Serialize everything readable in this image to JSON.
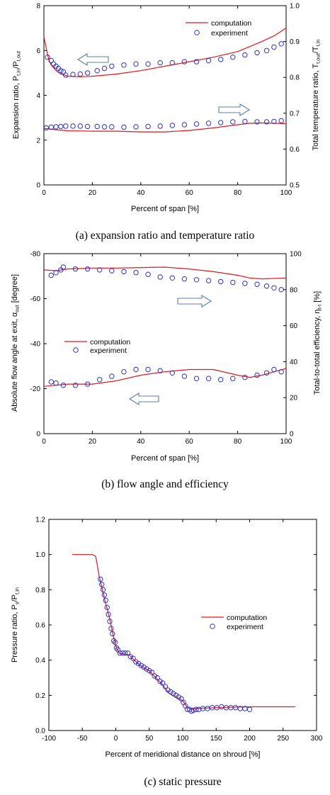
{
  "chart_data": [
    {
      "type": "line",
      "caption": "(a) expansion ratio and temperature ratio",
      "xlabel": "Percent of span [%]",
      "ylabel_left": "Expansion ratio, P",
      "ylabel_left_sub1": "t,in",
      "ylabel_left_mid": "/P",
      "ylabel_left_sub2": "t,out",
      "ylabel_right": "Total temperature ratio, T",
      "ylabel_right_sub1": "t,out",
      "ylabel_right_mid": "/T",
      "ylabel_right_sub2": "t,in",
      "xlim": [
        0,
        100
      ],
      "ylim_left": [
        0,
        8
      ],
      "ylim_right": [
        0.5,
        1.0
      ],
      "xticks": [
        "0",
        "20",
        "40",
        "60",
        "80",
        "100"
      ],
      "yticks_left": [
        "0",
        "2",
        "4",
        "6",
        "8"
      ],
      "yticks_right": [
        "0.5",
        "0.6",
        "0.7",
        "0.8",
        "0.9",
        "1.0"
      ],
      "legend": {
        "position": "top-right",
        "computation": "computation",
        "experiment": "experiment"
      },
      "arrows": [
        {
          "points_to": "left",
          "color": "#5b7fa3"
        },
        {
          "points_to": "right",
          "color": "#5b7fa3"
        }
      ],
      "series": [
        {
          "name": "computation",
          "axis": "left",
          "style": "line",
          "color": "#e0181b",
          "x": [
            0,
            1,
            2,
            3,
            5,
            7,
            10,
            15,
            20,
            30,
            40,
            50,
            60,
            70,
            80,
            90,
            95,
            100
          ],
          "y": [
            6.6,
            6.1,
            5.6,
            5.35,
            5.1,
            4.95,
            4.85,
            4.83,
            4.85,
            4.95,
            5.1,
            5.3,
            5.5,
            5.7,
            5.95,
            6.4,
            6.65,
            7.0
          ]
        },
        {
          "name": "experiment",
          "axis": "left",
          "style": "markers",
          "color": "#3333c4",
          "x": [
            1.5,
            3,
            4,
            5,
            6,
            7,
            8,
            9,
            12,
            15,
            18,
            22,
            25,
            28,
            33,
            38,
            43,
            48,
            53,
            58,
            63,
            68,
            73,
            78,
            83,
            88,
            92,
            95,
            98
          ],
          "y": [
            5.7,
            5.55,
            5.4,
            5.3,
            5.2,
            5.1,
            5.05,
            4.9,
            4.93,
            4.95,
            5.0,
            5.1,
            5.2,
            5.3,
            5.35,
            5.4,
            5.4,
            5.45,
            5.45,
            5.5,
            5.5,
            5.55,
            5.6,
            5.7,
            5.8,
            5.9,
            6.0,
            6.15,
            6.3
          ]
        },
        {
          "name": "computation",
          "axis": "right",
          "style": "line",
          "color": "#e0181b",
          "x": [
            0,
            5,
            10,
            20,
            30,
            40,
            50,
            60,
            70,
            80,
            85,
            90,
            95,
            100
          ],
          "y": [
            0.658,
            0.654,
            0.651,
            0.65,
            0.65,
            0.648,
            0.648,
            0.652,
            0.659,
            0.668,
            0.672,
            0.673,
            0.672,
            0.671
          ]
        },
        {
          "name": "experiment",
          "axis": "right",
          "style": "markers",
          "color": "#3333c4",
          "x": [
            1,
            3,
            5,
            7,
            9,
            12,
            15,
            18,
            22,
            25,
            28,
            33,
            38,
            43,
            48,
            53,
            58,
            63,
            68,
            73,
            78,
            83,
            88,
            92,
            95,
            98
          ],
          "y": [
            0.659,
            0.661,
            0.662,
            0.663,
            0.664,
            0.664,
            0.664,
            0.663,
            0.663,
            0.662,
            0.662,
            0.661,
            0.662,
            0.663,
            0.664,
            0.666,
            0.668,
            0.67,
            0.672,
            0.674,
            0.676,
            0.677,
            0.676,
            0.676,
            0.677,
            0.679
          ]
        }
      ]
    },
    {
      "type": "line",
      "caption": "(b) flow angle and efficiency",
      "xlabel": "Percent of span [%]",
      "ylabel_left": "Absolute flow angle at exit, α",
      "ylabel_left_sub1": "out",
      "ylabel_left_mid": " [degree]",
      "ylabel_right": "Total-to-total efficiency, η",
      "ylabel_right_sub1": "t-t",
      "ylabel_right_mid": " [%]",
      "xlim": [
        0,
        100
      ],
      "ylim_left": [
        0,
        -80
      ],
      "ylim_right": [
        0,
        100
      ],
      "xticks": [
        "0",
        "20",
        "40",
        "60",
        "80",
        "100"
      ],
      "yticks_left": [
        "-80",
        "-60",
        "-40",
        "-20",
        "0"
      ],
      "yticks_right": [
        "0",
        "20",
        "40",
        "60",
        "80",
        "100"
      ],
      "legend": {
        "position": "center-left",
        "computation": "computation",
        "experiment": "experiment"
      },
      "arrows": [
        {
          "points_to": "right",
          "color": "#5b7fa3"
        },
        {
          "points_to": "left",
          "color": "#5b7fa3"
        }
      ],
      "series": [
        {
          "name": "computation",
          "axis": "right",
          "style": "line",
          "color": "#e0181b",
          "x": [
            0,
            5,
            10,
            20,
            30,
            40,
            50,
            60,
            70,
            80,
            85,
            90,
            100
          ],
          "y": [
            91,
            90.5,
            91.5,
            92,
            92,
            92.3,
            92.5,
            91.5,
            90,
            88,
            86.5,
            86,
            86.5
          ]
        },
        {
          "name": "experiment",
          "axis": "right",
          "style": "markers",
          "color": "#3333c4",
          "x": [
            3,
            5,
            7,
            8,
            13,
            18,
            23,
            28,
            33,
            38,
            43,
            48,
            53,
            58,
            63,
            68,
            73,
            78,
            83,
            88,
            92,
            95,
            98
          ],
          "y": [
            88,
            89.5,
            91,
            92.5,
            91.5,
            91.5,
            91,
            90.5,
            90,
            89.5,
            88.5,
            87,
            86.5,
            86,
            85.5,
            85,
            84.5,
            84,
            83.5,
            83,
            82,
            81,
            80
          ]
        },
        {
          "name": "computation",
          "axis": "left",
          "style": "line",
          "color": "#e0181b",
          "x": [
            0,
            5,
            10,
            20,
            30,
            40,
            50,
            60,
            70,
            80,
            85,
            90,
            100
          ],
          "y": [
            -21,
            -21.5,
            -22,
            -22,
            -23.5,
            -26,
            -27.5,
            -28.5,
            -28.5,
            -26,
            -25,
            -26,
            -29
          ]
        },
        {
          "name": "experiment",
          "axis": "left",
          "style": "markers",
          "color": "#3333c4",
          "x": [
            3,
            5,
            8,
            13,
            18,
            23,
            28,
            33,
            38,
            43,
            48,
            53,
            58,
            63,
            68,
            73,
            78,
            83,
            88,
            92,
            95,
            98
          ],
          "y": [
            -23,
            -22.5,
            -21.5,
            -21.5,
            -22,
            -24,
            -25.5,
            -27.5,
            -28.5,
            -28.5,
            -28,
            -27,
            -25.5,
            -24.5,
            -24.5,
            -24,
            -24.5,
            -25,
            -26,
            -27,
            -28.5,
            -27.5
          ]
        }
      ]
    },
    {
      "type": "line",
      "caption": "(c) static pressure",
      "xlabel": "Percent of meridional distance on shroud [%]",
      "ylabel_left": "Pressure ratio, P",
      "ylabel_left_sub1": "s",
      "ylabel_left_mid": "/P",
      "ylabel_left_sub2": "t,in",
      "xlim": [
        -100,
        300
      ],
      "ylim_left": [
        0,
        1.2
      ],
      "xticks": [
        "-100",
        "-50",
        "0",
        "50",
        "100",
        "150",
        "200",
        "250",
        "300"
      ],
      "yticks_left": [
        "0.0",
        "0.2",
        "0.4",
        "0.6",
        "0.8",
        "1.0",
        "1.2"
      ],
      "legend": {
        "position": "right",
        "computation": "computation",
        "experiment": "experiment"
      },
      "series": [
        {
          "name": "computation",
          "axis": "left",
          "style": "line",
          "color": "#e0181b",
          "x": [
            -65,
            -35,
            -30,
            -28,
            -25,
            -20,
            -15,
            -10,
            -5,
            0,
            5,
            10,
            20,
            30,
            40,
            50,
            60,
            70,
            80,
            90,
            100,
            105,
            110,
            120,
            150,
            200,
            268
          ],
          "y": [
            1.0,
            1.0,
            0.99,
            0.95,
            0.88,
            0.8,
            0.72,
            0.65,
            0.56,
            0.48,
            0.44,
            0.435,
            0.43,
            0.39,
            0.36,
            0.34,
            0.3,
            0.26,
            0.21,
            0.19,
            0.17,
            0.14,
            0.125,
            0.125,
            0.13,
            0.135,
            0.135
          ]
        },
        {
          "name": "experiment",
          "axis": "left",
          "style": "markers",
          "color": "#3333c4",
          "x": [
            -23,
            -21,
            -19,
            -17,
            -15,
            -13,
            -11,
            -9,
            -7,
            -5,
            -3,
            -1,
            1,
            3,
            6,
            10,
            14,
            18,
            22,
            26,
            30,
            34,
            38,
            42,
            46,
            50,
            54,
            58,
            62,
            66,
            70,
            74,
            78,
            82,
            86,
            90,
            94,
            98,
            101,
            104,
            107,
            110,
            113,
            116,
            120,
            124,
            130,
            137,
            144,
            151,
            158,
            165,
            172,
            179,
            186,
            193,
            200
          ],
          "y": [
            0.86,
            0.83,
            0.8,
            0.77,
            0.74,
            0.7,
            0.66,
            0.62,
            0.58,
            0.55,
            0.51,
            0.5,
            0.47,
            0.46,
            0.44,
            0.44,
            0.44,
            0.44,
            0.42,
            0.41,
            0.39,
            0.38,
            0.37,
            0.36,
            0.35,
            0.34,
            0.33,
            0.31,
            0.3,
            0.28,
            0.27,
            0.25,
            0.23,
            0.22,
            0.21,
            0.2,
            0.19,
            0.18,
            0.16,
            0.14,
            0.12,
            0.12,
            0.11,
            0.115,
            0.12,
            0.12,
            0.125,
            0.125,
            0.13,
            0.13,
            0.135,
            0.13,
            0.13,
            0.13,
            0.125,
            0.125,
            0.12
          ]
        }
      ]
    }
  ]
}
